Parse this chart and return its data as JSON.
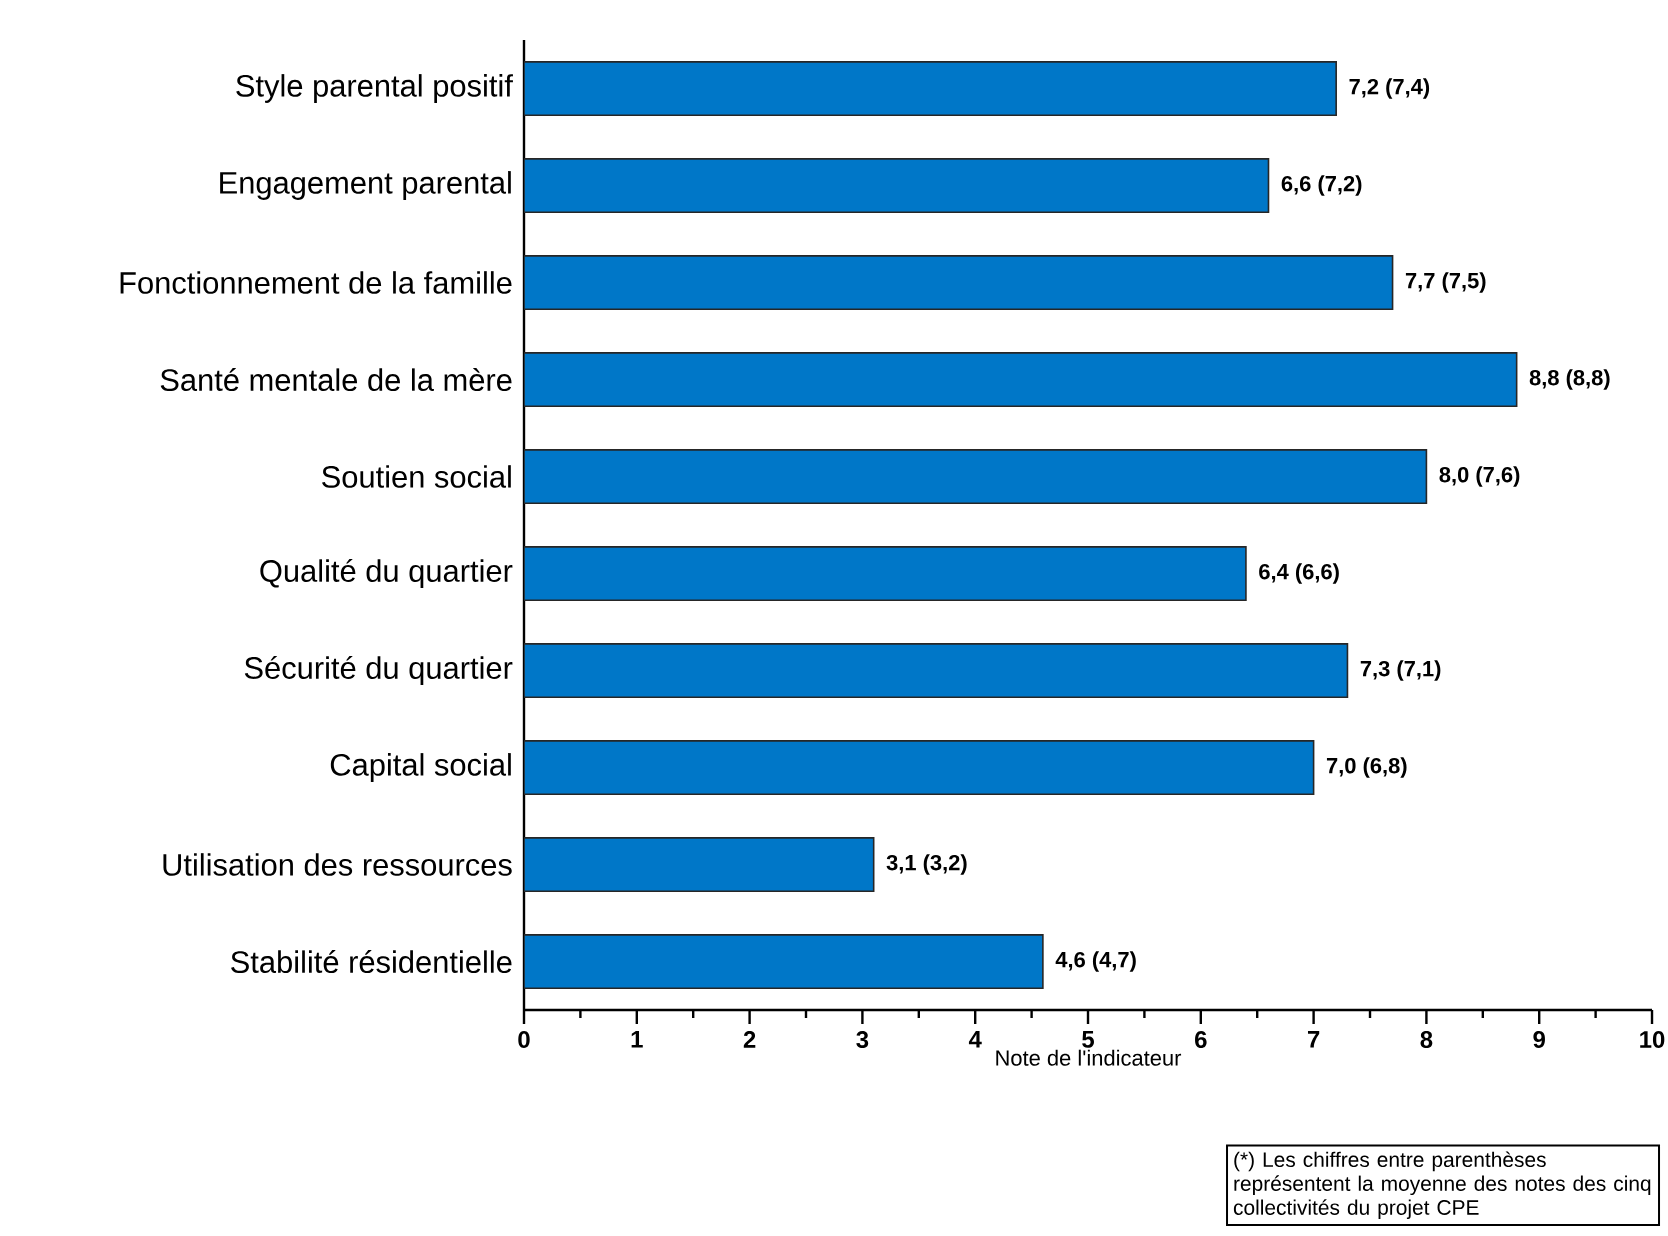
{
  "chart_data": {
    "type": "bar",
    "orientation": "horizontal",
    "categories": [
      "Style parental positif",
      "Engagement parental",
      "Fonctionnement de la famille",
      "Santé mentale de la mère",
      "Soutien social",
      "Qualité du quartier",
      "Sécurité du quartier",
      "Capital social",
      "Utilisation des ressources",
      "Stabilité résidentielle"
    ],
    "values": [
      7.2,
      6.6,
      7.7,
      8.8,
      8.0,
      6.4,
      7.3,
      7.0,
      3.1,
      4.6
    ],
    "value_labels": [
      "7,2   (7,4)",
      "6,6   (7,2)",
      "7,7   (7,5)",
      "8,8   (8,8)",
      "8,0   (7,6)",
      "6,4   (6,6)",
      "7,3   (7,1)",
      "7,0   (6,8)",
      "3,1   (3,2)",
      "4,6   (4,7)"
    ],
    "color": "#0077c8",
    "xlabel": "Note de l'indicateur",
    "xlim": [
      0,
      10
    ],
    "xticks": [
      0,
      1,
      2,
      3,
      4,
      5,
      6,
      7,
      8,
      9,
      10
    ],
    "annotations": [
      "(*) Les chiffres entre parenthèses représentent la moyenne des notes des cinq collectivités du projet CPE"
    ]
  }
}
